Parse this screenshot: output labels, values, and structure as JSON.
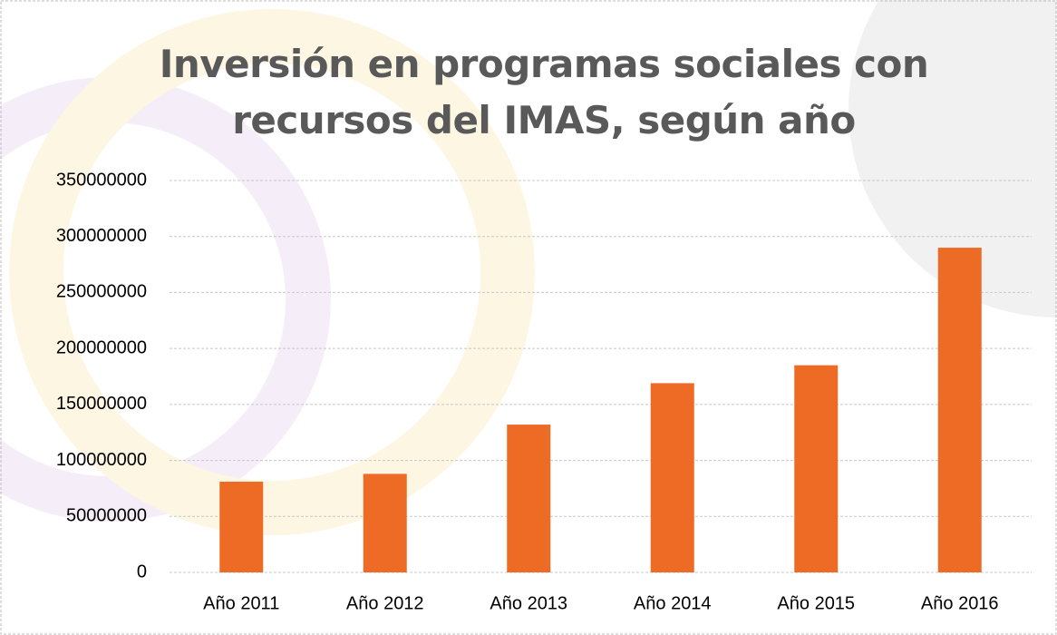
{
  "chart_data": {
    "type": "bar",
    "title": "Inversión en programas sociales con recursos del IMAS, según año",
    "categories": [
      "Año 2011",
      "Año 2012",
      "Año 2013",
      "Año 2014",
      "Año 2015",
      "Año 2016"
    ],
    "values": [
      81000000,
      88000000,
      132000000,
      169000000,
      185000000,
      290000000
    ],
    "color": "#ed6b25",
    "ylim": [
      0,
      350000000
    ],
    "yticks": [
      0,
      50000000,
      100000000,
      150000000,
      200000000,
      250000000,
      300000000,
      350000000
    ],
    "grid": true
  }
}
